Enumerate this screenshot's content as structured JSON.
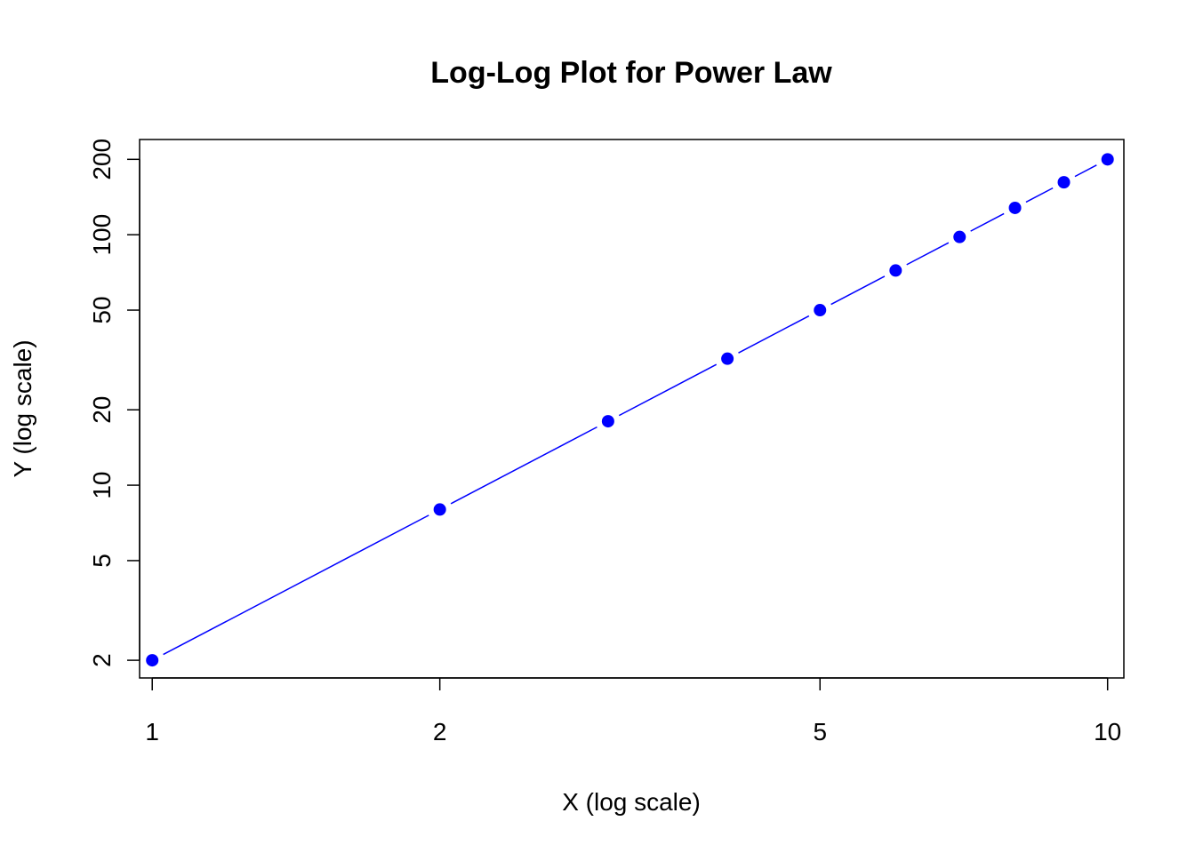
{
  "chart_data": {
    "type": "scatter",
    "title": "Log-Log Plot for Power Law",
    "xlabel": "X (log scale)",
    "ylabel": "Y (log scale)",
    "x_scale": "log",
    "y_scale": "log",
    "xlim": [
      0.97,
      10.4
    ],
    "ylim": [
      1.7,
      240
    ],
    "x_ticks": [
      1,
      2,
      5,
      10
    ],
    "y_ticks": [
      2,
      5,
      10,
      20,
      50,
      100,
      200
    ],
    "grid": false,
    "legend": "none",
    "series": [
      {
        "x": [
          1,
          2,
          3,
          4,
          5,
          6,
          7,
          8,
          9,
          10
        ],
        "y": [
          2,
          8,
          18,
          32,
          50,
          72,
          98,
          128,
          162,
          200
        ],
        "point_color": "#0000FF",
        "line_color": "#0000FF",
        "line_style": "dashed"
      }
    ]
  }
}
